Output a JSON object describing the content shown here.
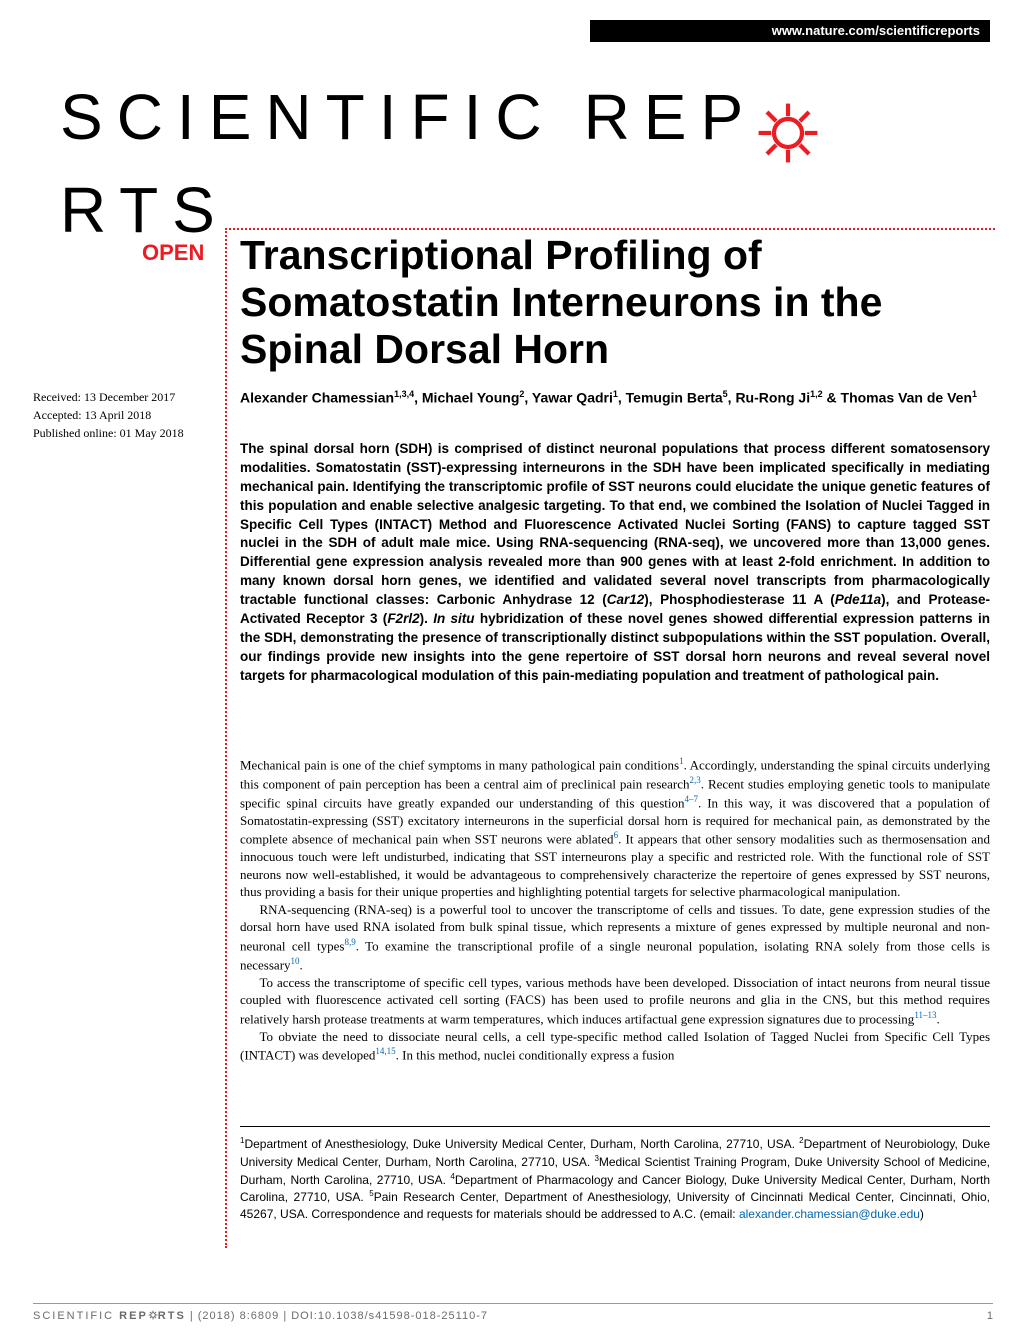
{
  "header": {
    "url": "www.nature.com/scientificreports"
  },
  "logo": {
    "part1": "SCIENTIFIC",
    "part2": "REP",
    "part3": "RTS",
    "gear_color": "#ec1c24"
  },
  "badge": {
    "open": "OPEN"
  },
  "title": "Transcriptional Profiling of Somatostatin Interneurons in the Spinal Dorsal Horn",
  "meta": {
    "received": "Received: 13 December 2017",
    "accepted": "Accepted: 13 April 2018",
    "published": "Published online: 01 May 2018"
  },
  "authors_html": "Alexander Chamessian<sup>1,3,4</sup>, Michael Young<sup>2</sup>, Yawar Qadri<sup>1</sup>, Temugin Berta<sup>5</sup>, Ru-Rong Ji<sup>1,2</sup> & Thomas Van de Ven<sup>1</sup>",
  "abstract": "The spinal dorsal horn (SDH) is comprised of distinct neuronal populations that process different somatosensory modalities. Somatostatin (SST)-expressing interneurons in the SDH have been implicated specifically in mediating mechanical pain. Identifying the transcriptomic profile of SST neurons could elucidate the unique genetic features of this population and enable selective analgesic targeting. To that end, we combined the Isolation of Nuclei Tagged in Specific Cell Types (INTACT) Method and Fluorescence Activated Nuclei Sorting (FANS) to capture tagged SST nuclei in the SDH of adult male mice. Using RNA-sequencing (RNA-seq), we uncovered more than 13,000 genes. Differential gene expression analysis revealed more than 900 genes with at least 2-fold enrichment. In addition to many known dorsal horn genes, we identified and validated several novel transcripts from pharmacologically tractable functional classes: Carbonic Anhydrase 12 (<span class=\"italic\">Car12</span>), Phosphodiesterase 11 A (<span class=\"italic\">Pde11a</span>), and Protease-Activated Receptor 3 (<span class=\"italic\">F2rl2</span>). <span class=\"italic\">In situ</span> hybridization of these novel genes showed differential expression patterns in the SDH, demonstrating the presence of transcriptionally distinct subpopulations within the SST population. Overall, our findings provide new insights into the gene repertoire of SST dorsal horn neurons and reveal several novel targets for pharmacological modulation of this pain-mediating population and treatment of pathological pain.",
  "body": {
    "p1": "Mechanical pain is one of the chief symptoms in many pathological pain conditions<sup>1</sup>. Accordingly, understanding the spinal circuits underlying this component of pain perception has been a central aim of preclinical pain research<sup>2,3</sup>. Recent studies employing genetic tools to manipulate specific spinal circuits have greatly expanded our understanding of this question<sup>4–7</sup>. In this way, it was discovered that a population of Somatostatin-expressing (SST) excitatory interneurons in the superficial dorsal horn is required for mechanical pain, as demonstrated by the complete absence of mechanical pain when SST neurons were ablated<sup>6</sup>. It appears that other sensory modalities such as thermosensation and innocuous touch were left undisturbed, indicating that SST interneurons play a specific and restricted role. With the functional role of SST neurons now well-established, it would be advantageous to comprehensively characterize the repertoire of genes expressed by SST neurons, thus providing a basis for their unique properties and highlighting potential targets for selective pharmacological manipulation.",
    "p2": "RNA-sequencing (RNA-seq) is a powerful tool to uncover the transcriptome of cells and tissues. To date, gene expression studies of the dorsal horn have used RNA isolated from bulk spinal tissue, which represents a mixture of genes expressed by multiple neuronal and non-neuronal cell types<sup>8,9</sup>. To examine the transcriptional profile of a single neuronal population, isolating RNA solely from those cells is necessary<sup>10</sup>.",
    "p3": "To access the transcriptome of specific cell types, various methods have been developed. Dissociation of intact neurons from neural tissue coupled with fluorescence activated cell sorting (FACS) has been used to profile neurons and glia in the CNS, but this method requires relatively harsh protease treatments at warm temperatures, which induces artifactual gene expression signatures due to processing<sup>11–13</sup>.",
    "p4": "To obviate the need to dissociate neural cells, a cell type-specific method called Isolation of Tagged Nuclei from Specific Cell Types (INTACT) was developed<sup>14,15</sup>. In this method, nuclei conditionally express a fusion"
  },
  "affiliations_html": "<sup>1</sup>Department of Anesthesiology, Duke University Medical Center, Durham, North Carolina, 27710, USA. <sup>2</sup>Department of Neurobiology, Duke University Medical Center, Durham, North Carolina, 27710, USA. <sup>3</sup>Medical Scientist Training Program, Duke University School of Medicine, Durham, North Carolina, 27710, USA. <sup>4</sup>Department of Pharmacology and Cancer Biology, Duke University Medical Center, Durham, North Carolina, 27710, USA. <sup>5</sup>Pain Research Center, Department of Anesthesiology, University of Cincinnati Medical Center, Cincinnati, Ohio, 45267, USA. Correspondence and requests for materials should be addressed to A.C. (email: <span class=\"email\">alexander.chamessian@duke.edu</span>)",
  "footer": {
    "citation": "SCIENTIFIC REPORTS | (2018) 8:6809 | DOI:10.1038/s41598-018-25110-7",
    "page": "1"
  },
  "colors": {
    "accent": "#ec1c24",
    "link": "#0066b3",
    "footer_gray": "#6b6b6b",
    "background": "#ffffff",
    "text": "#000000",
    "header_bg": "#000000"
  }
}
